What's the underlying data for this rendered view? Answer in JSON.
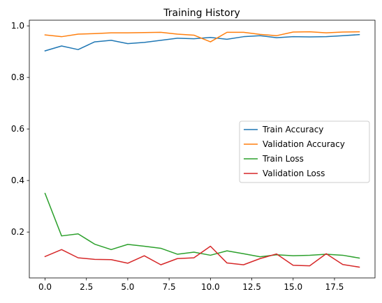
{
  "chart_data": {
    "type": "line",
    "title": "Training History",
    "xlabel": "",
    "ylabel": "",
    "x": [
      0,
      1,
      2,
      3,
      4,
      5,
      6,
      7,
      8,
      9,
      10,
      11,
      12,
      13,
      14,
      15,
      16,
      17,
      18,
      19
    ],
    "xlim": [
      -0.95,
      19.95
    ],
    "ylim": [
      0.022,
      1.022
    ],
    "x_ticks": [
      0,
      2.5,
      5,
      7.5,
      10,
      12.5,
      15,
      17.5
    ],
    "x_tick_labels": [
      "0.0",
      "2.5",
      "5.0",
      "7.5",
      "10.0",
      "12.5",
      "15.0",
      "17.5"
    ],
    "y_ticks": [
      0.2,
      0.4,
      0.6,
      0.8,
      1.0
    ],
    "y_tick_labels": [
      "0.2",
      "0.4",
      "0.6",
      "0.8",
      "1.0"
    ],
    "grid": false,
    "legend_position": "center-right",
    "series": [
      {
        "name": "Train Accuracy",
        "color": "#1f77b4",
        "values": [
          0.903,
          0.922,
          0.908,
          0.938,
          0.944,
          0.931,
          0.936,
          0.944,
          0.952,
          0.95,
          0.955,
          0.948,
          0.958,
          0.962,
          0.954,
          0.958,
          0.957,
          0.958,
          0.962,
          0.966
        ]
      },
      {
        "name": "Validation Accuracy",
        "color": "#ff7f0e",
        "values": [
          0.965,
          0.958,
          0.968,
          0.97,
          0.973,
          0.973,
          0.974,
          0.975,
          0.968,
          0.964,
          0.938,
          0.975,
          0.975,
          0.967,
          0.962,
          0.976,
          0.977,
          0.973,
          0.976,
          0.977
        ]
      },
      {
        "name": "Train Loss",
        "color": "#2ca02c",
        "values": [
          0.35,
          0.185,
          0.193,
          0.153,
          0.132,
          0.152,
          0.145,
          0.137,
          0.114,
          0.122,
          0.11,
          0.127,
          0.116,
          0.104,
          0.112,
          0.108,
          0.11,
          0.114,
          0.11,
          0.099
        ]
      },
      {
        "name": "Validation Loss",
        "color": "#d62728",
        "values": [
          0.105,
          0.132,
          0.1,
          0.094,
          0.093,
          0.079,
          0.108,
          0.073,
          0.097,
          0.1,
          0.145,
          0.08,
          0.073,
          0.097,
          0.115,
          0.071,
          0.069,
          0.116,
          0.074,
          0.064
        ]
      }
    ]
  }
}
